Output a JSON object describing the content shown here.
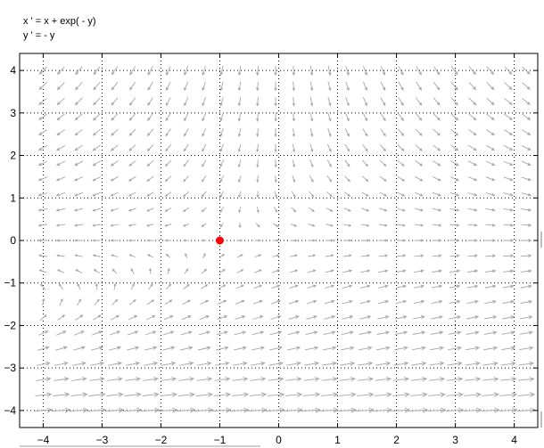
{
  "equations": {
    "x_eq": "x ' = x + exp( - y)",
    "y_eq": "y ' = - y"
  },
  "chart_data": {
    "type": "scatter",
    "title": "",
    "xlabel": "",
    "ylabel": "",
    "xlim": [
      -4.4,
      4.4
    ],
    "ylim": [
      -4.4,
      4.4
    ],
    "xticks": [
      -4,
      -3,
      -2,
      -1,
      0,
      1,
      2,
      3,
      4
    ],
    "yticks": [
      -4,
      -3,
      -2,
      -1,
      0,
      1,
      2,
      3,
      4
    ],
    "xtick_labels": [
      "−4",
      "−3",
      "−2",
      "−1",
      "0",
      "1",
      "2",
      "3",
      "4"
    ],
    "ytick_labels": [
      "−4",
      "−3",
      "−2",
      "−1",
      "0",
      "1",
      "2",
      "3",
      "4"
    ],
    "grid": true,
    "vector_field": {
      "x_range": [
        -4,
        4.2
      ],
      "y_range": [
        -4,
        4
      ],
      "nx": 28,
      "ny": 23,
      "color": "#a6a6a6"
    },
    "series": [
      {
        "type": "scatter",
        "x": [
          -1
        ],
        "y": [
          0
        ],
        "color": "#ff0000"
      }
    ]
  },
  "colors": {
    "arrow": "#a6a6a6",
    "equilibrium": "#ff0000",
    "grid": "#000000",
    "axes": "#000000"
  }
}
